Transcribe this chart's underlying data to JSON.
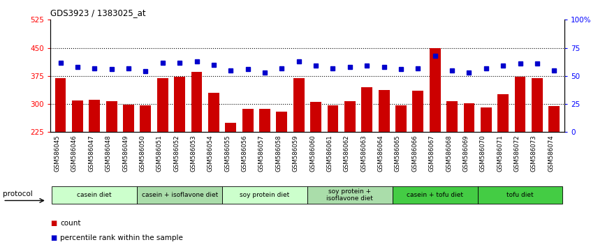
{
  "title": "GDS3923 / 1383025_at",
  "samples": [
    "GSM586045",
    "GSM586046",
    "GSM586047",
    "GSM586048",
    "GSM586049",
    "GSM586050",
    "GSM586051",
    "GSM586052",
    "GSM586053",
    "GSM586054",
    "GSM586055",
    "GSM586056",
    "GSM586057",
    "GSM586058",
    "GSM586059",
    "GSM586060",
    "GSM586061",
    "GSM586062",
    "GSM586063",
    "GSM586064",
    "GSM586065",
    "GSM586066",
    "GSM586067",
    "GSM586068",
    "GSM586069",
    "GSM586070",
    "GSM586071",
    "GSM586072",
    "GSM586073",
    "GSM586074"
  ],
  "counts": [
    370,
    310,
    312,
    308,
    298,
    296,
    370,
    372,
    385,
    330,
    250,
    287,
    288,
    280,
    370,
    305,
    297,
    307,
    345,
    337,
    297,
    335,
    450,
    307,
    302,
    290,
    327,
    373,
    370,
    295
  ],
  "percentiles": [
    62,
    58,
    57,
    56,
    57,
    54,
    62,
    62,
    63,
    60,
    55,
    56,
    53,
    57,
    63,
    59,
    57,
    58,
    59,
    58,
    56,
    57,
    68,
    55,
    53,
    57,
    59,
    61,
    61,
    55
  ],
  "ylim_left": [
    225,
    525
  ],
  "ylim_right": [
    0,
    100
  ],
  "yticks_left": [
    225,
    300,
    375,
    450,
    525
  ],
  "yticks_right": [
    0,
    25,
    50,
    75,
    100
  ],
  "bar_color": "#cc0000",
  "dot_color": "#0000cc",
  "groups": [
    {
      "label": "casein diet",
      "start": 0,
      "end": 5,
      "color": "#ccffcc"
    },
    {
      "label": "casein + isoflavone diet",
      "start": 5,
      "end": 10,
      "color": "#aaddaa"
    },
    {
      "label": "soy protein diet",
      "start": 10,
      "end": 15,
      "color": "#ccffcc"
    },
    {
      "label": "soy protein +\nisoflavone diet",
      "start": 15,
      "end": 20,
      "color": "#aaddaa"
    },
    {
      "label": "casein + tofu diet",
      "start": 20,
      "end": 25,
      "color": "#44cc44"
    },
    {
      "label": "tofu diet",
      "start": 25,
      "end": 30,
      "color": "#44cc44"
    }
  ],
  "protocol_label": "protocol",
  "legend_count_label": "count",
  "legend_pct_label": "percentile rank within the sample",
  "background_color": "#ffffff"
}
